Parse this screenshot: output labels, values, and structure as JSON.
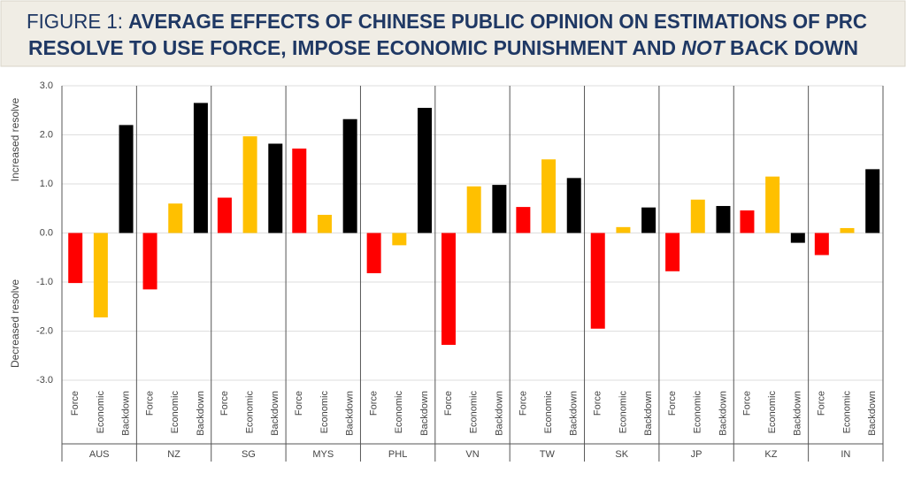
{
  "chart_data": {
    "type": "bar",
    "title_parts": [
      "FIGURE 1:",
      "AVERAGE EFFECTS OF CHINESE PUBLIC OPINION ON ESTIMATIONS OF PRC",
      "RESOLVE TO USE FORCE, IMPOSE ECONOMIC PUNISHMENT AND",
      "NOT",
      "BACK DOWN"
    ],
    "y_label_upper": "Increased resolve",
    "y_label_lower": "Decreased resolve",
    "categories": [
      "AUS",
      "NZ",
      "SG",
      "MYS",
      "PHL",
      "VN",
      "TW",
      "SK",
      "JP",
      "KZ",
      "IN"
    ],
    "series": [
      {
        "name": "Force",
        "color": "#ff0000",
        "values": [
          -1.02,
          -1.15,
          0.72,
          1.72,
          -0.82,
          -2.28,
          0.53,
          -1.95,
          -0.78,
          0.46,
          -0.45
        ]
      },
      {
        "name": "Economic",
        "color": "#ffc000",
        "values": [
          -1.72,
          0.6,
          1.97,
          0.37,
          -0.25,
          0.95,
          1.5,
          0.12,
          0.68,
          1.15,
          0.1
        ]
      },
      {
        "name": "Backdown",
        "color": "#000000",
        "values": [
          2.2,
          2.65,
          1.82,
          2.32,
          2.55,
          0.98,
          1.12,
          0.52,
          0.55,
          -0.2,
          1.3
        ]
      }
    ],
    "ylim": [
      -3,
      3
    ],
    "yticks": [
      {
        "value": 3,
        "label": "3.0"
      },
      {
        "value": 2,
        "label": "2.0"
      },
      {
        "value": 1,
        "label": "1.0"
      },
      {
        "value": 0,
        "label": "0.0"
      },
      {
        "value": -1,
        "label": "-1.0"
      },
      {
        "value": -2,
        "label": "-2.0"
      },
      {
        "value": -3,
        "label": "-3.0"
      }
    ],
    "grid": true
  }
}
